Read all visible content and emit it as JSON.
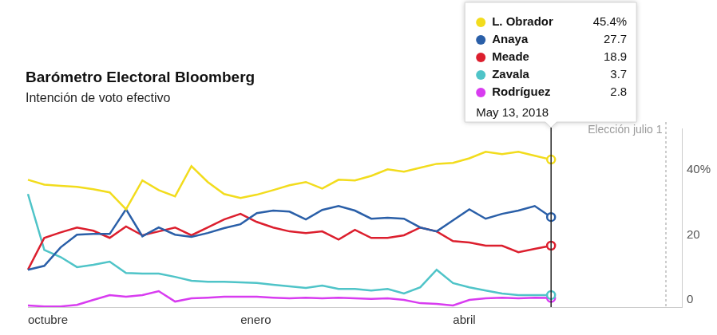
{
  "chart_data": {
    "type": "line",
    "title": "Barómetro Electoral Bloomberg",
    "subtitle": "Intención de voto efectivo",
    "categories": [
      "octubre",
      null,
      null,
      null,
      null,
      null,
      null,
      null,
      null,
      null,
      null,
      null,
      null,
      "enero",
      null,
      null,
      null,
      null,
      null,
      null,
      null,
      null,
      null,
      null,
      null,
      null,
      "abril",
      null,
      null,
      null,
      null,
      null,
      null,
      null,
      null,
      null,
      null,
      null,
      null,
      null,
      null
    ],
    "series": [
      {
        "name": "L. Obrador",
        "color": "#f2dc1d",
        "values": [
          39.2,
          37.7,
          37.3,
          37.0,
          36.3,
          35.3,
          30.1,
          39.0,
          36.0,
          34.1,
          43.4,
          38.5,
          34.8,
          33.6,
          34.6,
          36.0,
          37.5,
          38.5,
          36.5,
          39.2,
          39.0,
          40.4,
          42.4,
          41.7,
          42.9,
          44.1,
          44.4,
          45.8,
          47.8,
          47.1,
          47.8,
          46.6,
          45.4,
          null,
          null,
          null,
          null,
          null,
          null,
          null,
          null
        ]
      },
      {
        "name": "Anaya",
        "color": "#2a5fa8",
        "values": [
          11.5,
          12.7,
          18.4,
          22.3,
          22.5,
          22.5,
          30.1,
          21.8,
          24.5,
          22.3,
          21.6,
          22.8,
          24.3,
          25.5,
          28.9,
          29.7,
          29.4,
          27.0,
          29.9,
          31.1,
          29.7,
          27.2,
          27.5,
          27.2,
          24.5,
          23.3,
          26.7,
          30.1,
          27.2,
          28.7,
          29.7,
          31.1,
          27.7,
          null,
          null,
          null,
          null,
          null,
          null,
          null,
          null
        ]
      },
      {
        "name": "Meade",
        "color": "#dc1f2e",
        "values": [
          11.5,
          21.3,
          23.0,
          24.5,
          23.5,
          21.3,
          24.8,
          22.1,
          23.3,
          24.5,
          22.1,
          24.5,
          27.0,
          28.7,
          26.2,
          24.5,
          23.3,
          22.8,
          23.3,
          20.8,
          23.8,
          21.3,
          21.3,
          22.1,
          24.5,
          23.3,
          20.3,
          19.9,
          18.9,
          18.9,
          16.9,
          17.9,
          18.9,
          null,
          null,
          null,
          null,
          null,
          null,
          null,
          null
        ]
      },
      {
        "name": "Zavala",
        "color": "#4fc4c8",
        "values": [
          34.8,
          17.6,
          15.4,
          12.3,
          13.0,
          14.0,
          10.5,
          10.3,
          10.3,
          9.3,
          8.1,
          7.8,
          7.8,
          7.6,
          7.4,
          6.9,
          6.4,
          5.9,
          6.6,
          5.6,
          5.6,
          5.1,
          5.6,
          4.2,
          6.1,
          11.5,
          7.4,
          6.1,
          5.1,
          4.2,
          3.7,
          3.7,
          3.7,
          null,
          null,
          null,
          null,
          null,
          null,
          null,
          null
        ]
      },
      {
        "name": "Rodríguez",
        "color": "#d83cf0",
        "values": [
          0.5,
          0.2,
          0.2,
          0.7,
          2.2,
          3.7,
          3.2,
          3.7,
          4.9,
          1.7,
          2.7,
          2.9,
          3.2,
          3.2,
          3.2,
          2.9,
          2.7,
          2.9,
          2.7,
          2.9,
          2.7,
          2.5,
          2.7,
          2.2,
          1.2,
          1.0,
          0.5,
          2.2,
          2.7,
          2.9,
          2.7,
          2.9,
          2.8,
          null,
          null,
          null,
          null,
          null,
          null,
          null,
          null
        ]
      }
    ],
    "ylim": [
      0,
      55
    ],
    "yticks": [
      0,
      20,
      {
        "value": 40,
        "label": "40%"
      }
    ],
    "grid": false,
    "callout": {
      "x": 32,
      "date": "May 13, 2018",
      "labels": [
        "45.4%",
        "27.7",
        "18.9",
        "3.7",
        "2.8"
      ]
    },
    "annotations": [
      {
        "text": "Elección julio 1",
        "x": 39,
        "line_style": "dashed"
      }
    ]
  }
}
